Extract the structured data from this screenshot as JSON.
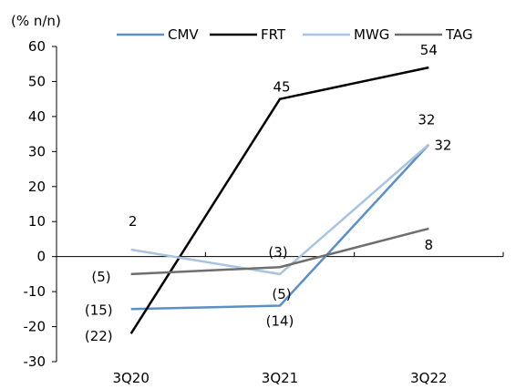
{
  "chart_data": {
    "type": "line",
    "ylabel": "(% n/n)",
    "categories": [
      "3Q20",
      "3Q21",
      "3Q22"
    ],
    "ylim": [
      -30,
      60
    ],
    "yticks": [
      60,
      50,
      40,
      30,
      20,
      10,
      0,
      -10,
      -20,
      -30
    ],
    "grid": false,
    "legend_position": "top",
    "series": [
      {
        "name": "CMV",
        "values": [
          -15,
          -14,
          32
        ],
        "labels": [
          "(15)",
          "(14)",
          "32"
        ],
        "color": "#5b8fc9"
      },
      {
        "name": "FRT",
        "values": [
          -22,
          45,
          54
        ],
        "labels": [
          "(22)",
          "45",
          "54"
        ],
        "color": "#000000"
      },
      {
        "name": "MWG",
        "values": [
          2,
          -5,
          32
        ],
        "labels": [
          "2",
          "(5)",
          "32"
        ],
        "color": "#a9c3e0"
      },
      {
        "name": "TAG",
        "values": [
          -5,
          -3,
          8
        ],
        "labels": [
          "(5)",
          "(3)",
          "8"
        ],
        "color": "#6e6e6e"
      }
    ]
  }
}
